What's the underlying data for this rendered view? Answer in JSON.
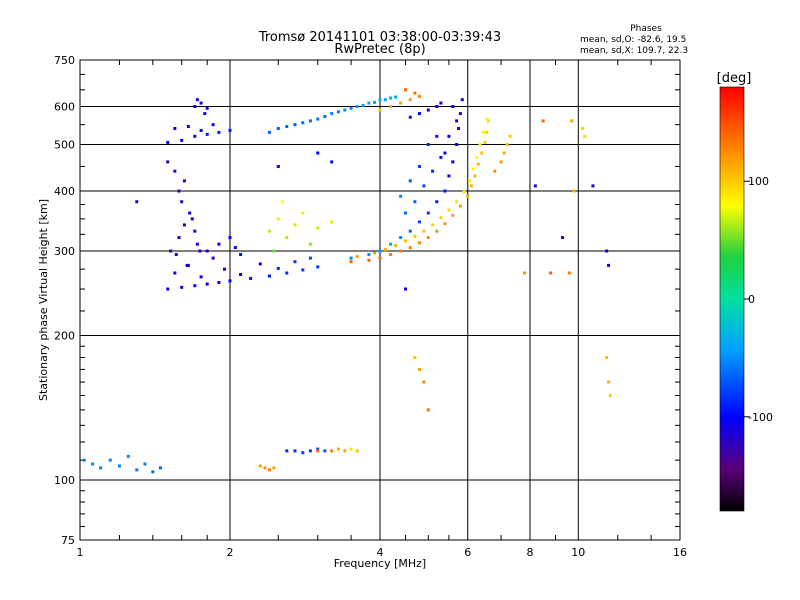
{
  "chart_data": {
    "type": "scatter",
    "title": "Tromsø 20141101 03:38:00-03:39:43",
    "subtitle": "RwPretec (8p)",
    "xlabel": "Frequency [MHz]",
    "ylabel": "Stationary phase Virtual Height [km]",
    "x_scale": "log",
    "y_scale": "log",
    "xlim": [
      1,
      16
    ],
    "ylim": [
      75,
      750
    ],
    "x_ticks": [
      1,
      2,
      4,
      6,
      8,
      10,
      16
    ],
    "x_tick_labels": [
      "1",
      "2",
      "4",
      "6",
      "8",
      "10",
      "16"
    ],
    "y_ticks": [
      75,
      100,
      200,
      300,
      400,
      500,
      600,
      750
    ],
    "y_tick_labels": [
      "75",
      "100",
      "200",
      "300",
      "400",
      "500",
      "600",
      "750"
    ],
    "grid": true,
    "legend": {
      "title": "Phases",
      "lines": [
        "mean, sd,O: -82.6, 19.5",
        "mean, sd,X: 109.7, 22.3"
      ],
      "position": "top-right"
    },
    "colorbar": {
      "label": "[deg]",
      "range": [
        -180,
        180
      ],
      "ticks": [
        100,
        0,
        -100
      ],
      "tick_labels": [
        "100",
        "0",
        "-100"
      ]
    },
    "series": [
      {
        "values": [
          [
            1.5,
            250,
            -110
          ],
          [
            1.6,
            252,
            -108
          ],
          [
            1.7,
            254,
            -106
          ],
          [
            1.8,
            256,
            -104
          ],
          [
            1.9,
            258,
            -102
          ],
          [
            2.0,
            260,
            -100
          ],
          [
            2.2,
            263,
            -96
          ],
          [
            2.4,
            266,
            -92
          ],
          [
            2.6,
            270,
            -88
          ],
          [
            2.8,
            274,
            -84
          ],
          [
            3.0,
            278,
            -80
          ],
          [
            1.55,
            270,
            -115
          ],
          [
            1.65,
            280,
            -112
          ],
          [
            1.75,
            265,
            -110
          ],
          [
            1.85,
            290,
            -108
          ],
          [
            1.95,
            275,
            -105
          ],
          [
            2.1,
            268,
            -102
          ],
          [
            2.3,
            282,
            -98
          ],
          [
            2.5,
            276,
            -90
          ],
          [
            2.7,
            285,
            -85
          ],
          [
            2.9,
            290,
            -78
          ],
          [
            1.52,
            300,
            -118
          ],
          [
            1.58,
            320,
            -116
          ],
          [
            1.62,
            340,
            -114
          ],
          [
            1.66,
            360,
            -112
          ],
          [
            1.7,
            330,
            -110
          ],
          [
            1.72,
            310,
            -108
          ],
          [
            1.64,
            280,
            -120
          ],
          [
            1.56,
            295,
            -116
          ],
          [
            1.68,
            350,
            -114
          ],
          [
            1.74,
            300,
            -112
          ],
          [
            1.6,
            380,
            -122
          ],
          [
            1.62,
            420,
            -120
          ],
          [
            1.55,
            440,
            -125
          ],
          [
            1.5,
            460,
            -130
          ],
          [
            1.58,
            400,
            -118
          ],
          [
            1.8,
            300,
            -112
          ],
          [
            1.9,
            310,
            -105
          ],
          [
            2.0,
            320,
            -100
          ],
          [
            2.05,
            305,
            -98
          ],
          [
            2.1,
            295,
            -96
          ],
          [
            1.02,
            110,
            -60
          ],
          [
            1.06,
            108,
            -55
          ],
          [
            1.1,
            106,
            -62
          ],
          [
            1.2,
            107,
            -58
          ],
          [
            1.3,
            105,
            -64
          ],
          [
            1.4,
            104,
            -66
          ],
          [
            1.45,
            106,
            -70
          ],
          [
            1.15,
            110,
            -60
          ],
          [
            1.25,
            112,
            -55
          ],
          [
            1.35,
            108,
            -60
          ],
          [
            1.5,
            505,
            -100
          ],
          [
            1.6,
            510,
            -98
          ],
          [
            1.7,
            520,
            -96
          ],
          [
            1.8,
            525,
            -95
          ],
          [
            1.9,
            530,
            -94
          ],
          [
            2.0,
            535,
            -92
          ],
          [
            1.55,
            540,
            -105
          ],
          [
            1.65,
            545,
            -102
          ],
          [
            1.75,
            535,
            -100
          ],
          [
            1.85,
            550,
            -98
          ],
          [
            1.7,
            600,
            -110
          ],
          [
            1.75,
            610,
            -108
          ],
          [
            1.8,
            595,
            -106
          ],
          [
            1.78,
            580,
            -104
          ],
          [
            1.72,
            620,
            -112
          ],
          [
            2.4,
            530,
            -70
          ],
          [
            2.6,
            545,
            -68
          ],
          [
            2.8,
            555,
            -66
          ],
          [
            3.0,
            565,
            -64
          ],
          [
            3.2,
            580,
            -60
          ],
          [
            3.4,
            590,
            -55
          ],
          [
            3.6,
            600,
            -50
          ],
          [
            3.8,
            610,
            -45
          ],
          [
            4.0,
            620,
            -40
          ],
          [
            4.2,
            625,
            -35
          ],
          [
            2.5,
            540,
            -72
          ],
          [
            2.7,
            550,
            -70
          ],
          [
            2.9,
            560,
            -68
          ],
          [
            3.1,
            572,
            -66
          ],
          [
            3.3,
            585,
            -62
          ],
          [
            3.5,
            595,
            -58
          ],
          [
            3.7,
            603,
            -52
          ],
          [
            3.9,
            612,
            -48
          ],
          [
            4.1,
            620,
            -44
          ],
          [
            4.3,
            628,
            -40
          ],
          [
            3.5,
            290,
            -60
          ],
          [
            3.8,
            295,
            -55
          ],
          [
            4.0,
            300,
            -50
          ],
          [
            4.2,
            310,
            -45
          ],
          [
            4.4,
            320,
            -60
          ],
          [
            4.6,
            330,
            -70
          ],
          [
            4.8,
            345,
            -80
          ],
          [
            5.0,
            360,
            -85
          ],
          [
            5.2,
            380,
            -90
          ],
          [
            5.4,
            400,
            -95
          ],
          [
            5.5,
            430,
            -100
          ],
          [
            5.6,
            460,
            -102
          ],
          [
            5.7,
            500,
            -105
          ],
          [
            5.75,
            540,
            -108
          ],
          [
            5.8,
            580,
            -110
          ],
          [
            5.85,
            620,
            -112
          ],
          [
            5.6,
            600,
            -104
          ],
          [
            5.7,
            560,
            -106
          ],
          [
            5.5,
            520,
            -100
          ],
          [
            5.4,
            480,
            -98
          ],
          [
            4.5,
            360,
            -65
          ],
          [
            4.7,
            380,
            -70
          ],
          [
            4.9,
            410,
            -78
          ],
          [
            5.1,
            440,
            -88
          ],
          [
            5.3,
            470,
            -92
          ],
          [
            4.8,
            450,
            -82
          ],
          [
            5.0,
            500,
            -90
          ],
          [
            5.2,
            520,
            -95
          ],
          [
            4.6,
            420,
            -72
          ],
          [
            4.4,
            390,
            -60
          ],
          [
            4.6,
            570,
            -95
          ],
          [
            4.8,
            580,
            -100
          ],
          [
            5.0,
            590,
            -105
          ],
          [
            5.2,
            600,
            -108
          ],
          [
            5.3,
            610,
            -110
          ],
          [
            2.9,
            115,
            -80
          ],
          [
            3.0,
            116,
            -78
          ],
          [
            3.1,
            115,
            -75
          ],
          [
            2.8,
            114,
            -82
          ],
          [
            2.7,
            115,
            -85
          ],
          [
            2.6,
            115,
            -88
          ],
          [
            3.0,
            480,
            -100
          ],
          [
            2.5,
            450,
            -110
          ],
          [
            3.2,
            460,
            -105
          ],
          [
            4.5,
            250,
            -110
          ],
          [
            1.3,
            380,
            -115
          ],
          [
            9.3,
            320,
            -120
          ],
          [
            8.2,
            410,
            -115
          ],
          [
            10.7,
            410,
            -118
          ],
          [
            11.4,
            300,
            -110
          ],
          [
            11.5,
            280,
            -105
          ]
        ]
      },
      {
        "values": [
          [
            3.5,
            285,
            150
          ],
          [
            3.8,
            287,
            148
          ],
          [
            4.0,
            290,
            146
          ],
          [
            4.2,
            295,
            144
          ],
          [
            4.4,
            300,
            142
          ],
          [
            4.6,
            305,
            140
          ],
          [
            4.8,
            312,
            138
          ],
          [
            5.0,
            320,
            136
          ],
          [
            5.2,
            330,
            134
          ],
          [
            5.4,
            342,
            132
          ],
          [
            5.6,
            356,
            130
          ],
          [
            5.8,
            372,
            128
          ],
          [
            6.0,
            390,
            126
          ],
          [
            6.1,
            410,
            124
          ],
          [
            6.2,
            430,
            122
          ],
          [
            6.3,
            455,
            120
          ],
          [
            6.4,
            480,
            118
          ],
          [
            6.5,
            505,
            116
          ],
          [
            6.55,
            530,
            114
          ],
          [
            6.6,
            560,
            112
          ],
          [
            3.6,
            292,
            130
          ],
          [
            3.9,
            297,
            128
          ],
          [
            4.1,
            302,
            126
          ],
          [
            4.3,
            308,
            124
          ],
          [
            4.5,
            315,
            122
          ],
          [
            4.7,
            322,
            120
          ],
          [
            4.9,
            330,
            118
          ],
          [
            5.1,
            340,
            116
          ],
          [
            5.3,
            352,
            114
          ],
          [
            5.5,
            365,
            112
          ],
          [
            5.7,
            380,
            110
          ],
          [
            5.9,
            398,
            108
          ],
          [
            6.05,
            420,
            106
          ],
          [
            6.15,
            445,
            104
          ],
          [
            6.25,
            470,
            102
          ],
          [
            6.35,
            500,
            100
          ],
          [
            6.45,
            530,
            98
          ],
          [
            6.55,
            565,
            96
          ],
          [
            2.4,
            330,
            80
          ],
          [
            2.5,
            350,
            90
          ],
          [
            2.6,
            320,
            75
          ],
          [
            2.7,
            340,
            85
          ],
          [
            2.8,
            360,
            95
          ],
          [
            2.9,
            310,
            70
          ],
          [
            3.0,
            335,
            82
          ],
          [
            3.2,
            345,
            88
          ],
          [
            2.45,
            300,
            60
          ],
          [
            2.55,
            380,
            100
          ],
          [
            4.0,
            590,
            120
          ],
          [
            4.2,
            600,
            125
          ],
          [
            4.4,
            610,
            130
          ],
          [
            4.6,
            620,
            135
          ],
          [
            4.8,
            630,
            140
          ],
          [
            4.7,
            640,
            145
          ],
          [
            4.5,
            650,
            150
          ],
          [
            3.0,
            115,
            150
          ],
          [
            3.2,
            115,
            140
          ],
          [
            3.4,
            115,
            130
          ],
          [
            3.6,
            115,
            120
          ],
          [
            3.5,
            116,
            110
          ],
          [
            3.3,
            116,
            125
          ],
          [
            2.3,
            107,
            130
          ],
          [
            2.35,
            106,
            135
          ],
          [
            2.4,
            105,
            140
          ],
          [
            2.45,
            106,
            128
          ],
          [
            4.9,
            160,
            140
          ],
          [
            5.0,
            140,
            145
          ],
          [
            4.7,
            180,
            120
          ],
          [
            4.8,
            170,
            130
          ],
          [
            6.8,
            440,
            135
          ],
          [
            7.0,
            460,
            130
          ],
          [
            7.1,
            480,
            125
          ],
          [
            7.2,
            500,
            120
          ],
          [
            7.3,
            520,
            115
          ],
          [
            8.5,
            560,
            150
          ],
          [
            9.7,
            560,
            130
          ],
          [
            9.8,
            400,
            125
          ],
          [
            10.2,
            540,
            115
          ],
          [
            10.3,
            520,
            110
          ],
          [
            11.4,
            180,
            120
          ],
          [
            11.5,
            160,
            125
          ],
          [
            11.6,
            150,
            115
          ],
          [
            8.8,
            270,
            150
          ],
          [
            9.6,
            270,
            140
          ],
          [
            7.8,
            270,
            135
          ]
        ]
      }
    ]
  }
}
